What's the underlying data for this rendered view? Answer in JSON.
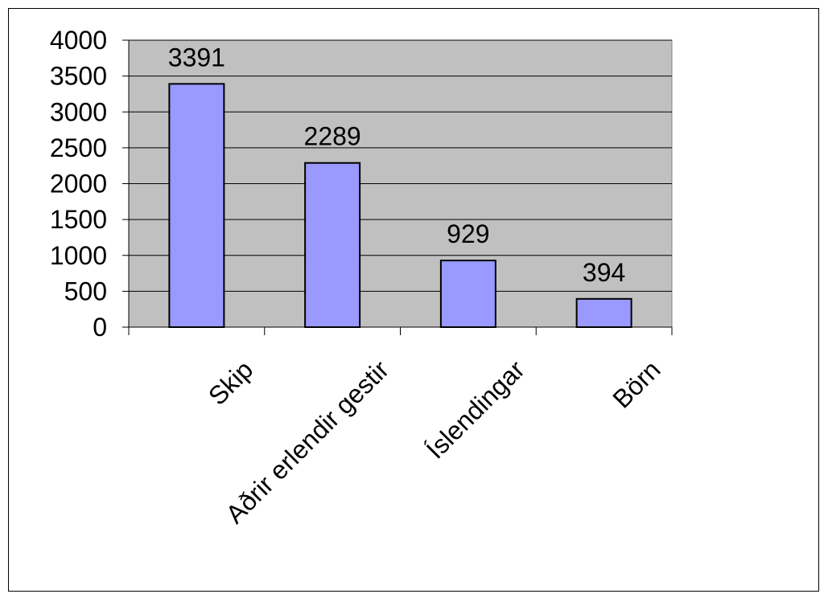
{
  "chart_data": {
    "type": "bar",
    "categories": [
      "Skip",
      "Aðrir erlendir gestir",
      "Íslendingar",
      "Börn"
    ],
    "values": [
      3391,
      2289,
      929,
      394
    ],
    "data_labels": [
      "3391",
      "2289",
      "929",
      "394"
    ],
    "title": "",
    "xlabel": "",
    "ylabel": "",
    "ylim": [
      0,
      4000
    ],
    "yticks": [
      "0",
      "500",
      "1000",
      "1500",
      "2000",
      "2500",
      "3000",
      "3500",
      "4000"
    ],
    "grid": true,
    "legend": "none",
    "colors": {
      "bar_fill": "#9999ff",
      "bar_stroke": "#000000",
      "plot_background": "#c0c0c0",
      "gridline": "#000000"
    }
  }
}
